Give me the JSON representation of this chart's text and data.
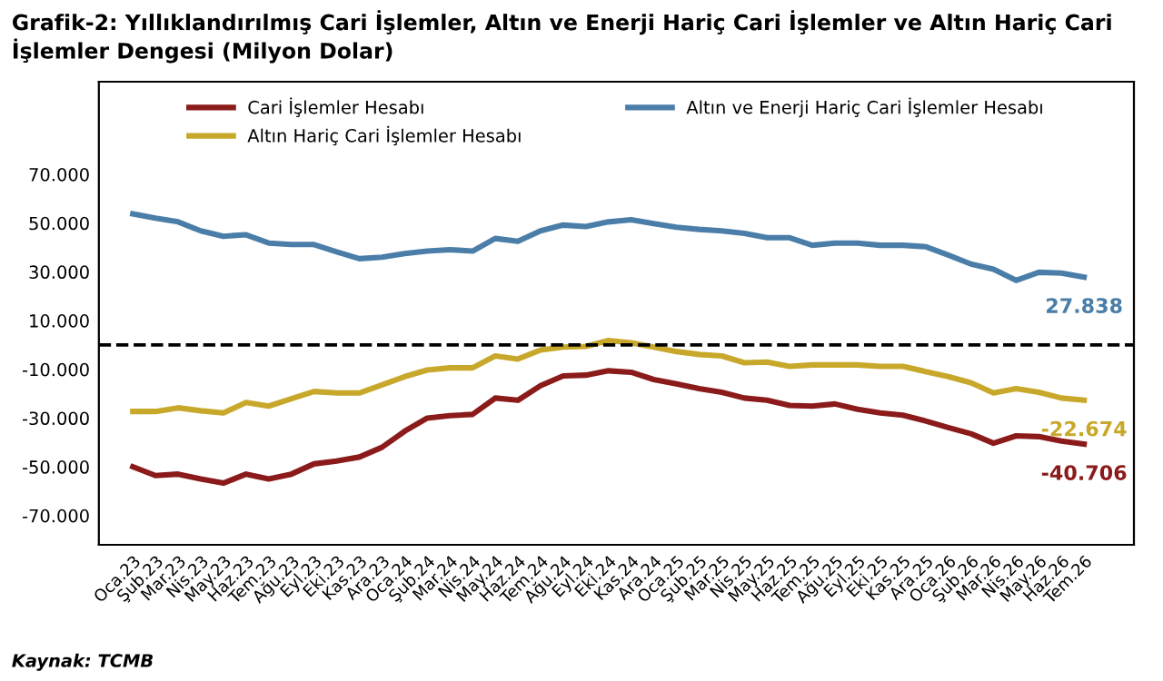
{
  "chart_data": {
    "type": "line",
    "title": "Grafik-2: Yıllıklandırılmış Cari İşlemler, Altın ve Enerji Hariç Cari İşlemler ve Altın Hariç Cari İşlemler Dengesi (Milyon Dolar)",
    "categories": [
      "Oca.23",
      "Şub.23",
      "Mar.23",
      "Nis.23",
      "May.23",
      "Haz.23",
      "Tem.23",
      "Ağu.23",
      "Eyl.23",
      "Eki.23",
      "Kas.23",
      "Ara.23",
      "Oca.24",
      "Şub.24",
      "Mar.24",
      "Nis.24",
      "May.24",
      "Haz.24",
      "Tem.24",
      "Ağu.24",
      "Eyl.24",
      "Eki.24",
      "Kas.24",
      "Ara.24",
      "Oca.25",
      "Şub.25",
      "Mar.25",
      "Nis.25",
      "May.25",
      "Haz.25",
      "Tem.25",
      "Ağu.25",
      "Eyl.25",
      "Eki.25",
      "Kas.25",
      "Ara.25",
      "Oca.26",
      "Şub.26",
      "Mar.26",
      "Nis.26",
      "May.26",
      "Haz.26",
      "Tem.26"
    ],
    "series": [
      {
        "name": "Cari İşlemler Hesabı",
        "color": "#8b1a1a",
        "values": [
          -50000,
          -53600,
          -53000,
          -55000,
          -56700,
          -53000,
          -55000,
          -53000,
          -48800,
          -47600,
          -46000,
          -42000,
          -35400,
          -30000,
          -29000,
          -28500,
          -21800,
          -22700,
          -16700,
          -12700,
          -12400,
          -10600,
          -11200,
          -14200,
          -16000,
          -17900,
          -19400,
          -21800,
          -22700,
          -24800,
          -25100,
          -24200,
          -26400,
          -27900,
          -28800,
          -31200,
          -33900,
          -36400,
          -40300,
          -37300,
          -37600,
          -39400,
          -40706
        ],
        "value_labels": [
          null,
          null,
          null,
          null,
          null,
          null,
          null,
          null,
          null,
          null,
          null,
          null,
          null,
          null,
          null,
          null,
          null,
          null,
          null,
          null,
          null,
          null,
          null,
          null,
          null,
          null,
          null,
          null,
          null,
          null,
          null,
          null,
          null,
          null,
          null,
          null,
          null,
          null,
          null,
          null,
          null,
          null,
          "-40.706"
        ]
      },
      {
        "name": "Altın ve Enerji Hariç Cari İşlemler Hesabı",
        "color": "#4a7ea8",
        "values": [
          53800,
          52000,
          50500,
          46800,
          44600,
          45200,
          41800,
          41200,
          41200,
          38200,
          35400,
          36000,
          37500,
          38500,
          39100,
          38500,
          43700,
          42500,
          46800,
          49200,
          48600,
          50500,
          51400,
          49800,
          48300,
          47400,
          46800,
          45800,
          44000,
          44000,
          40900,
          41800,
          41800,
          40900,
          40900,
          40300,
          36900,
          33200,
          31100,
          26500,
          29800,
          29500,
          27838
        ],
        "value_labels": [
          null,
          null,
          null,
          null,
          null,
          null,
          null,
          null,
          null,
          null,
          null,
          null,
          null,
          null,
          null,
          null,
          null,
          null,
          null,
          null,
          null,
          null,
          null,
          null,
          null,
          null,
          null,
          null,
          null,
          null,
          null,
          null,
          null,
          null,
          null,
          null,
          null,
          null,
          null,
          null,
          null,
          null,
          "27.838"
        ]
      },
      {
        "name": "Altın Hariç Cari İşlemler Hesabı",
        "color": "#c8a82a",
        "values": [
          -27300,
          -27300,
          -25800,
          -27000,
          -27900,
          -23600,
          -25100,
          -22100,
          -19100,
          -19700,
          -19700,
          -16400,
          -13000,
          -10300,
          -9400,
          -9400,
          -4500,
          -5800,
          -2100,
          -900,
          -600,
          1800,
          900,
          -900,
          -2700,
          -3900,
          -4500,
          -7300,
          -7000,
          -8800,
          -8200,
          -8200,
          -8200,
          -8800,
          -8800,
          -10900,
          -13000,
          -15500,
          -19700,
          -17900,
          -19400,
          -21800,
          -22674
        ],
        "value_labels": [
          null,
          null,
          null,
          null,
          null,
          null,
          null,
          null,
          null,
          null,
          null,
          null,
          null,
          null,
          null,
          null,
          null,
          null,
          null,
          null,
          null,
          null,
          null,
          null,
          null,
          null,
          null,
          null,
          null,
          null,
          null,
          null,
          null,
          null,
          null,
          null,
          null,
          null,
          null,
          null,
          null,
          null,
          "-22.674"
        ]
      }
    ],
    "ylim": [
      -82000,
      108000
    ],
    "yticks": [
      {
        "value": -70000,
        "label": "-70.000"
      },
      {
        "value": -50000,
        "label": "-50.000"
      },
      {
        "value": -30000,
        "label": "-30.000"
      },
      {
        "value": -10000,
        "label": "-10.000"
      },
      {
        "value": 10000,
        "label": "10.000"
      },
      {
        "value": 30000,
        "label": "30.000"
      },
      {
        "value": 50000,
        "label": "50.000"
      },
      {
        "value": 70000,
        "label": "70.000"
      }
    ],
    "ref_lines": [
      {
        "axis": "y",
        "value": 0,
        "color": "#000000",
        "line_style": "dashed"
      }
    ],
    "grid": false,
    "legend": "top",
    "marker": "none",
    "line_style": "solid",
    "annotations": [
      "Kaynak: TCMB"
    ]
  }
}
